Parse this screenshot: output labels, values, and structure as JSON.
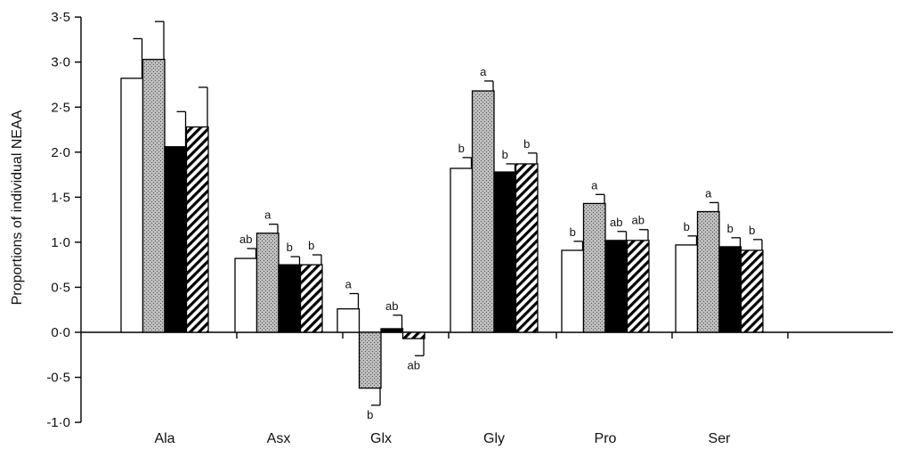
{
  "chart_data": {
    "type": "bar",
    "title": "",
    "xlabel": "",
    "ylabel": "Proportions of individual NEAA",
    "ylim": [
      -1.0,
      3.5
    ],
    "yticks": [
      -1.0,
      -0.5,
      0.0,
      0.5,
      1.0,
      1.5,
      2.0,
      2.5,
      3.0,
      3.5
    ],
    "ytick_labels": [
      "-1·0",
      "-0·5",
      "0·0",
      "0·5",
      "1·0",
      "1·5",
      "2·0",
      "2·5",
      "3·0",
      "3·5"
    ],
    "categories": [
      "Ala",
      "Asx",
      "Glx",
      "Gly",
      "Pro",
      "Ser"
    ],
    "legend": "none",
    "grid": false,
    "series": [
      {
        "fill": "white",
        "values": [
          2.82,
          0.82,
          0.26,
          1.82,
          0.91,
          0.97
        ],
        "errors": [
          0.44,
          0.11,
          0.17,
          0.12,
          0.1,
          0.1
        ],
        "labels": [
          "",
          "ab",
          "a",
          "b",
          "b",
          "b"
        ]
      },
      {
        "fill": "stipple",
        "values": [
          3.03,
          1.1,
          -0.62,
          2.68,
          1.43,
          1.34
        ],
        "errors": [
          0.42,
          0.1,
          0.19,
          0.11,
          0.1,
          0.1
        ],
        "labels": [
          "",
          "a",
          "b",
          "a",
          "a",
          "a"
        ]
      },
      {
        "fill": "black",
        "values": [
          2.06,
          0.75,
          0.04,
          1.78,
          1.02,
          0.95
        ],
        "errors": [
          0.39,
          0.09,
          0.15,
          0.09,
          0.1,
          0.1
        ],
        "labels": [
          "",
          "b",
          "ab",
          "b",
          "ab",
          "b"
        ]
      },
      {
        "fill": "hatched",
        "values": [
          2.28,
          0.75,
          -0.07,
          1.87,
          1.02,
          0.91
        ],
        "errors": [
          0.44,
          0.11,
          0.19,
          0.12,
          0.12,
          0.12
        ],
        "labels": [
          "",
          "b",
          "ab",
          "b",
          "ab",
          "b"
        ]
      }
    ]
  }
}
